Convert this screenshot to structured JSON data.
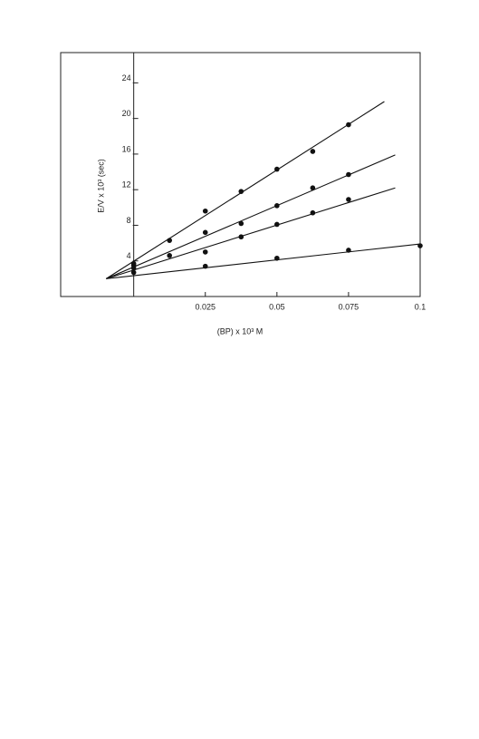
{
  "chart_data": {
    "type": "scatter",
    "xlabel": "(BP) x 10³ M",
    "ylabel": "E/V x 10³ (sec)",
    "xlim": [
      -0.0255,
      0.1
    ],
    "xticks": [
      0.025,
      0.05,
      0.075,
      0.1
    ],
    "ylim": [
      0,
      27.4
    ],
    "yticks": [
      4,
      8,
      12,
      16,
      20,
      24
    ],
    "color": "#111111",
    "series": [
      {
        "x": [
          0,
          0.0125,
          0.025,
          0.0375,
          0.05,
          0.0625,
          0.075
        ],
        "values": [
          3.7,
          6.3,
          9.6,
          11.8,
          14.3,
          16.3,
          19.3
        ],
        "fit": {
          "x": [
            -0.0096,
            0.0875
          ],
          "values": [
            2.0,
            21.9
          ]
        }
      },
      {
        "x": [
          0,
          0.0125,
          0.025,
          0.0375,
          0.05,
          0.0625,
          0.075
        ],
        "values": [
          3.5,
          4.6,
          7.2,
          8.2,
          10.2,
          12.2,
          13.7
        ],
        "fit": {
          "x": [
            -0.0096,
            0.0913
          ],
          "values": [
            2.0,
            15.9
          ]
        }
      },
      {
        "x": [
          0,
          0.025,
          0.0375,
          0.05,
          0.0625,
          0.075
        ],
        "values": [
          3.2,
          5.0,
          6.7,
          8.1,
          9.4,
          10.9
        ],
        "fit": {
          "x": [
            -0.0096,
            0.0913
          ],
          "values": [
            2.0,
            12.2
          ]
        }
      },
      {
        "x": [
          0,
          0.025,
          0.05,
          0.075,
          0.1
        ],
        "values": [
          2.7,
          3.4,
          4.3,
          5.2,
          5.7
        ],
        "fit": {
          "x": [
            -0.0096,
            0.1
          ],
          "values": [
            2.0,
            5.9
          ]
        }
      }
    ]
  }
}
